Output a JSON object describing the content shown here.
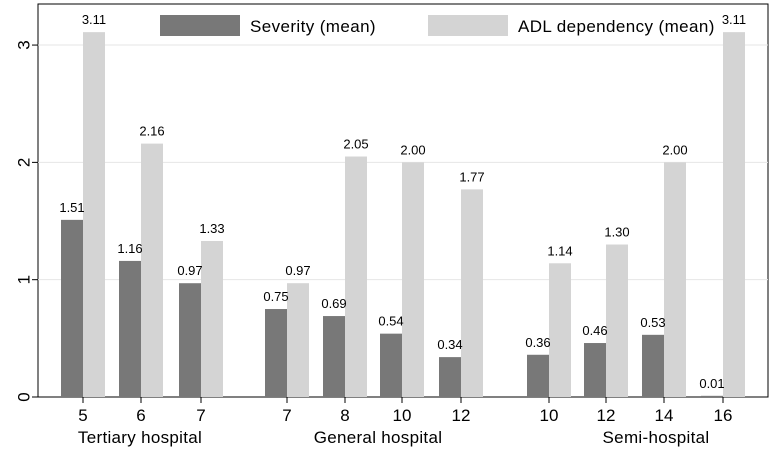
{
  "chart_data": {
    "type": "bar",
    "title": "",
    "xlabel": "",
    "ylabel": "",
    "ylim": [
      0,
      3.35
    ],
    "yticks": [
      0,
      1,
      2,
      3
    ],
    "gridlines": "horizontal",
    "legend": {
      "position": "top-center",
      "entries": [
        "Severity (mean)",
        "ADL dependency (mean)"
      ]
    },
    "colors": {
      "severity": "#787878",
      "adl": "#d4d4d4",
      "grid": "#e6e6e6"
    },
    "groups": [
      {
        "name": "Tertiary hospital",
        "categories": [
          "5",
          "6",
          "7"
        ],
        "severity": [
          1.51,
          1.16,
          0.97
        ],
        "adl": [
          3.11,
          2.16,
          1.33
        ]
      },
      {
        "name": "General hospital",
        "categories": [
          "7",
          "8",
          "10",
          "12"
        ],
        "severity": [
          0.75,
          0.69,
          0.54,
          0.34
        ],
        "adl": [
          0.97,
          2.05,
          2.0,
          1.77
        ]
      },
      {
        "name": "Semi-hospital",
        "categories": [
          "10",
          "12",
          "14",
          "16"
        ],
        "severity": [
          0.36,
          0.46,
          0.53,
          0.01
        ],
        "adl": [
          1.14,
          1.3,
          2.0,
          3.11
        ]
      }
    ],
    "series": [
      {
        "name": "Severity (mean)",
        "key": "severity"
      },
      {
        "name": "ADL dependency (mean)",
        "key": "adl"
      }
    ]
  }
}
